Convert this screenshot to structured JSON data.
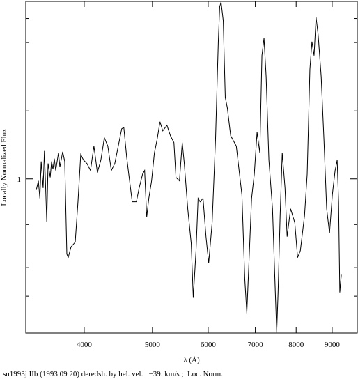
{
  "chart_data": {
    "type": "line",
    "xlabel": "λ (Å)",
    "ylabel": "Locally Normalized Flux",
    "caption": "sn1993j IIb (1993 09 20) deredsh. by hel. vel.   −39. km/s ;  Loc. Norm.",
    "xlog": true,
    "ylog": true,
    "xlim": [
      3304,
      9771
    ],
    "ylim": [
      0.3,
      4
    ],
    "xticks": [
      4000,
      5000,
      6000,
      7000,
      8000,
      9000
    ],
    "yticks": [
      1
    ],
    "y_minor_ticks": [
      0.4,
      0.5,
      0.7,
      1.7,
      2.9,
      3.5
    ],
    "color": "#000000",
    "x": [
      3420,
      3443,
      3460,
      3475,
      3497,
      3512,
      3539,
      3554,
      3579,
      3595,
      3611,
      3627,
      3644,
      3677,
      3694,
      3728,
      3753,
      3779,
      3796,
      3831,
      3884,
      3919,
      3955,
      3991,
      4036,
      4083,
      4129,
      4176,
      4224,
      4272,
      4321,
      4371,
      4421,
      4471,
      4522,
      4553,
      4595,
      4627,
      4680,
      4744,
      4787,
      4842,
      4874,
      4907,
      4941,
      4986,
      5032,
      5078,
      5125,
      5172,
      5243,
      5303,
      5364,
      5400,
      5462,
      5512,
      5549,
      5612,
      5676,
      5714,
      5766,
      5805,
      5844,
      5900,
      5957,
      6010,
      6078,
      6146,
      6202,
      6230,
      6258,
      6303,
      6345,
      6388,
      6458,
      6578,
      6700,
      6762,
      6808,
      6854,
      6915,
      6977,
      7040,
      7104,
      7153,
      7202,
      7252,
      7318,
      7405,
      7473,
      7507,
      7541,
      7592,
      7644,
      7714,
      7767,
      7856,
      7965,
      8038,
      8111,
      8222,
      8294,
      8368,
      8424,
      8483,
      8539,
      8597,
      8683,
      8761,
      8840,
      8923,
      9005,
      9087,
      9149,
      9191,
      9228,
      9274
    ],
    "values": [
      0.917,
      0.985,
      0.859,
      1.146,
      0.931,
      1.244,
      0.714,
      1.128,
      1.012,
      1.146,
      1.079,
      1.171,
      1.068,
      1.224,
      1.097,
      1.236,
      1.146,
      0.556,
      0.541,
      0.588,
      0.61,
      0.836,
      1.21,
      1.158,
      1.128,
      1.068,
      1.292,
      1.051,
      1.158,
      1.379,
      1.292,
      1.068,
      1.128,
      1.292,
      1.479,
      1.495,
      1.19,
      1.039,
      0.836,
      0.836,
      0.931,
      1.039,
      1.068,
      0.742,
      0.859,
      0.985,
      1.224,
      1.364,
      1.562,
      1.455,
      1.52,
      1.401,
      1.328,
      1.012,
      0.985,
      1.328,
      1.128,
      0.792,
      0.604,
      0.395,
      0.571,
      0.859,
      0.836,
      0.859,
      0.637,
      0.518,
      0.71,
      1.364,
      2.92,
      3.83,
      3.98,
      3.44,
      1.89,
      1.74,
      1.401,
      1.292,
      0.882,
      0.46,
      0.35,
      0.513,
      0.859,
      1.039,
      1.44,
      1.224,
      2.62,
      3.0,
      2.22,
      1.158,
      0.792,
      0.412,
      0.301,
      0.412,
      0.75,
      1.224,
      0.931,
      0.637,
      0.792,
      0.71,
      0.541,
      0.571,
      0.75,
      1.039,
      2.35,
      2.92,
      2.62,
      3.53,
      3.08,
      2.22,
      1.364,
      0.792,
      0.655,
      0.882,
      1.068,
      1.158,
      0.836,
      0.412,
      0.473
    ]
  }
}
